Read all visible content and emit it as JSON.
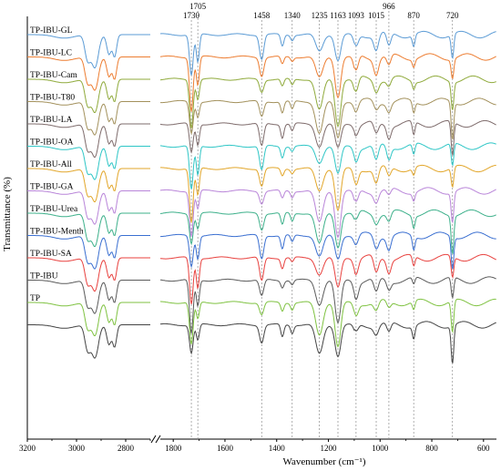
{
  "chart_data": {
    "type": "line",
    "xlabel": "Wavenumber (cm⁻¹)",
    "ylabel": "Transmittance (%)",
    "x_axis_reversed": true,
    "x_axis_break": true,
    "x_ranges": [
      [
        3200,
        2700
      ],
      [
        1850,
        550
      ]
    ],
    "x_ticks_left": [
      "3200",
      "3000",
      "2800"
    ],
    "x_ticks_right": [
      "1800",
      "1600",
      "1400",
      "1200",
      "1000",
      "800",
      "600"
    ],
    "annotations": [
      {
        "label": "1730",
        "x": 1730
      },
      {
        "label": "1705",
        "x": 1705
      },
      {
        "label": "1458",
        "x": 1458
      },
      {
        "label": "1340",
        "x": 1340
      },
      {
        "label": "1235",
        "x": 1235
      },
      {
        "label": "1163",
        "x": 1163
      },
      {
        "label": "1093",
        "x": 1093
      },
      {
        "label": "1015",
        "x": 1015
      },
      {
        "label": "966",
        "x": 966
      },
      {
        "label": "870",
        "x": 870
      },
      {
        "label": "720",
        "x": 720
      }
    ],
    "series": [
      {
        "name": "TP-IBU-GL",
        "color": "#5b9bd5"
      },
      {
        "name": "TP-IBU-LC",
        "color": "#ed7d31"
      },
      {
        "name": "TP-IBU-Cam",
        "color": "#8faa3b"
      },
      {
        "name": "TP-IBU-T80",
        "color": "#a3915c"
      },
      {
        "name": "TP-IBU-LA",
        "color": "#7e6b6b"
      },
      {
        "name": "TP-IBU-OA",
        "color": "#2ec6c6"
      },
      {
        "name": "TP-IBU-All",
        "color": "#e2a62a"
      },
      {
        "name": "TP-IBU-GA",
        "color": "#b985d9"
      },
      {
        "name": "TP-IBU-Urea",
        "color": "#3cb08a"
      },
      {
        "name": "TP-IBU-Menth",
        "color": "#3a6fd1"
      },
      {
        "name": "TP-IBU-SA",
        "color": "#e8413e"
      },
      {
        "name": "TP-IBU",
        "color": "#5a5a5a"
      },
      {
        "name": "TP",
        "color": "#7fc241"
      }
    ],
    "extra_series_color": "#444444"
  }
}
